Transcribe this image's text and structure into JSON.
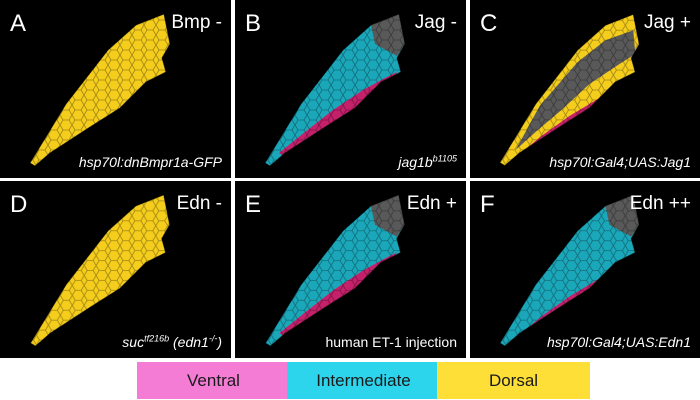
{
  "colors": {
    "ventral": "#f57cd5",
    "intermediate": "#2cd4ec",
    "dorsal": "#fddf38",
    "cell_ventral": "#c5206a",
    "cell_intermediate": "#1ba7ba",
    "cell_dorsal": "#f5cd1d",
    "cell_gray": "#595959",
    "cell_olive": "#a89a38"
  },
  "panels": [
    {
      "letter": "A",
      "condition": "Bmp -",
      "genotype_parts": [
        "hsp70l:dnBmpr1a-GFP"
      ]
    },
    {
      "letter": "B",
      "condition": "Jag -",
      "genotype_parts": [
        "jag1b",
        "b1105"
      ]
    },
    {
      "letter": "C",
      "condition": "Jag +",
      "genotype_parts": [
        "hsp70l:Gal4;UAS:Jag1"
      ]
    },
    {
      "letter": "D",
      "condition": "Edn -",
      "genotype_parts": [
        "suc",
        "tf216b",
        " (edn1",
        "-/-",
        ")"
      ]
    },
    {
      "letter": "E",
      "condition": "Edn +",
      "genotype_parts": [
        "human ET-1 injection"
      ]
    },
    {
      "letter": "F",
      "condition": "Edn ++",
      "genotype_parts": [
        "hsp70l:Gal4;UAS:Edn1"
      ]
    }
  ],
  "legend": [
    {
      "label": "Ventral",
      "color": "#f57cd5"
    },
    {
      "label": "Intermediate",
      "color": "#2cd4ec"
    },
    {
      "label": "Dorsal",
      "color": "#fddf38"
    }
  ]
}
